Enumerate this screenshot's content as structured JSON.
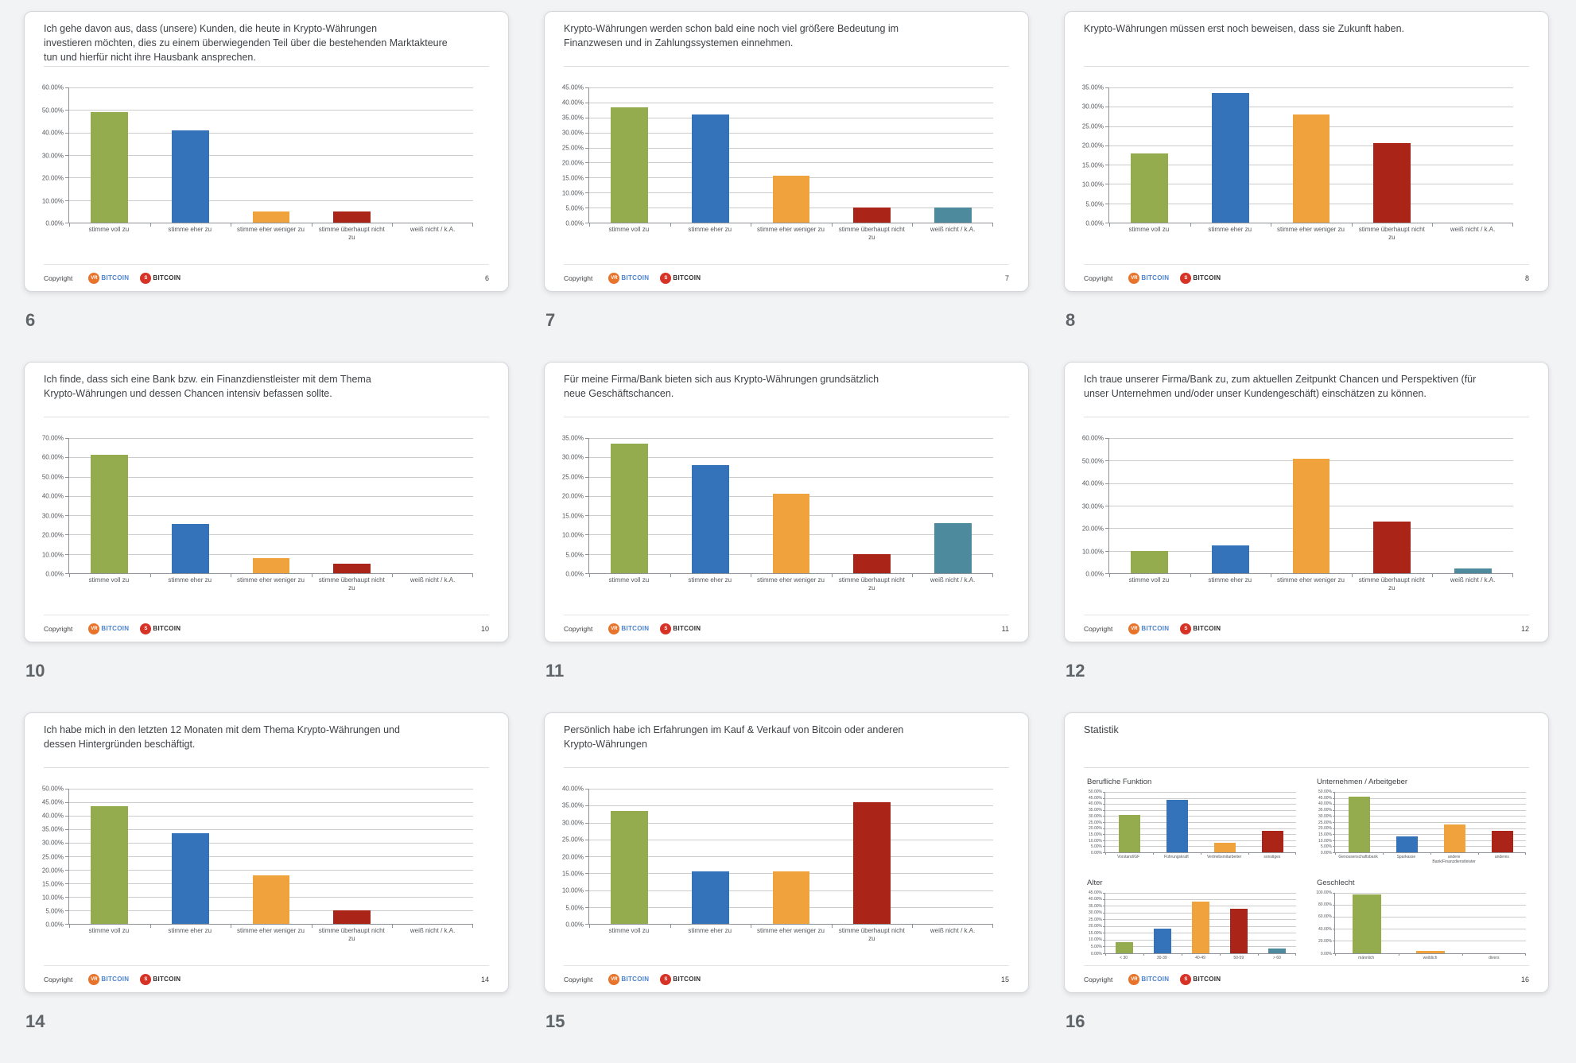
{
  "page": {
    "background_color": "#f2f3f5"
  },
  "branding": {
    "copyright_label": "Copyright",
    "logos": [
      {
        "badge": "VR",
        "badge_color": "#e8742c",
        "name": "BITCOIN",
        "name_color": "#4a82d0"
      },
      {
        "badge": "S",
        "badge_color": "#d63226",
        "name": "BITCOIN",
        "name_color": "#2c2c2c"
      }
    ]
  },
  "slides": [
    {
      "number": "6",
      "title": "Ich gehe davon aus, dass (unsere) Kunden, die heute in Krypto-Währungen\ninvestieren möchten, dies zu einem überwiegenden Teil über die bestehenden Marktakteure\ntun und hierfür nicht ihre Hausbank ansprechen.",
      "charts": [
        0
      ]
    },
    {
      "number": "7",
      "title": "Krypto-Währungen werden schon bald eine noch viel größere Bedeutung im\nFinanzwesen und in Zahlungssystemen einnehmen.",
      "charts": [
        1
      ]
    },
    {
      "number": "8",
      "title": "Krypto-Währungen müssen erst noch beweisen, dass sie Zukunft haben.",
      "charts": [
        2
      ]
    },
    {
      "number": "10",
      "title": "Ich finde, dass sich eine Bank bzw. ein Finanzdienstleister mit dem Thema\nKrypto-Währungen und dessen Chancen intensiv befassen sollte.",
      "charts": [
        3
      ]
    },
    {
      "number": "11",
      "title": "Für meine Firma/Bank bieten sich aus Krypto-Währungen grundsätzlich\nneue Geschäftschancen.",
      "charts": [
        4
      ]
    },
    {
      "number": "12",
      "title": "Ich traue unserer Firma/Bank zu, zum aktuellen Zeitpunkt Chancen und Perspektiven (für\nunser Unternehmen und/oder unser Kundengeschäft) einschätzen zu können.",
      "charts": [
        5
      ]
    },
    {
      "number": "14",
      "title": "Ich habe mich in den letzten 12 Monaten mit dem Thema Krypto-Währungen und\ndessen Hintergründen beschäftigt.",
      "charts": [
        6
      ]
    },
    {
      "number": "15",
      "title": "Persönlich habe ich Erfahrungen im Kauf & Verkauf von Bitcoin oder anderen\nKrypto-Währungen",
      "charts": [
        7
      ]
    },
    {
      "number": "16",
      "title": "Statistik",
      "charts": [
        8,
        9,
        10,
        11
      ]
    }
  ],
  "chart_data": [
    {
      "type": "bar",
      "slide": "6",
      "categories": [
        "stimme voll zu",
        "stimme eher zu",
        "stimme eher weniger zu",
        "stimme überhaupt nicht zu",
        "weiß nicht / k.A."
      ],
      "values": [
        49,
        41,
        5,
        5,
        0
      ],
      "ylim": [
        0,
        60
      ],
      "ytick_step": 10,
      "colors": [
        "#94ab4e",
        "#3473b9",
        "#f0a23d",
        "#aa2418",
        "#4e8a9e"
      ]
    },
    {
      "type": "bar",
      "slide": "7",
      "categories": [
        "stimme voll zu",
        "stimme eher zu",
        "stimme eher weniger zu",
        "stimme überhaupt nicht zu",
        "weiß nicht / k.A."
      ],
      "values": [
        38.5,
        36,
        15.5,
        5,
        5
      ],
      "ylim": [
        0,
        45
      ],
      "ytick_step": 5,
      "colors": [
        "#94ab4e",
        "#3473b9",
        "#f0a23d",
        "#aa2418",
        "#4e8a9e"
      ]
    },
    {
      "type": "bar",
      "slide": "8",
      "categories": [
        "stimme voll zu",
        "stimme eher zu",
        "stimme eher weniger zu",
        "stimme überhaupt nicht zu",
        "weiß nicht / k.A."
      ],
      "values": [
        18,
        33.5,
        28,
        20.5,
        0
      ],
      "ylim": [
        0,
        35
      ],
      "ytick_step": 5,
      "colors": [
        "#94ab4e",
        "#3473b9",
        "#f0a23d",
        "#aa2418",
        "#4e8a9e"
      ]
    },
    {
      "type": "bar",
      "slide": "10",
      "categories": [
        "stimme voll zu",
        "stimme eher zu",
        "stimme eher weniger zu",
        "stimme überhaupt nicht zu",
        "weiß nicht / k.A."
      ],
      "values": [
        61.5,
        25.5,
        8,
        5,
        0
      ],
      "ylim": [
        0,
        70
      ],
      "ytick_step": 10,
      "colors": [
        "#94ab4e",
        "#3473b9",
        "#f0a23d",
        "#aa2418",
        "#4e8a9e"
      ]
    },
    {
      "type": "bar",
      "slide": "11",
      "categories": [
        "stimme voll zu",
        "stimme eher zu",
        "stimme eher weniger zu",
        "stimme überhaupt nicht zu",
        "weiß nicht / k.A."
      ],
      "values": [
        33.5,
        28,
        20.5,
        5,
        13
      ],
      "ylim": [
        0,
        35
      ],
      "ytick_step": 5,
      "colors": [
        "#94ab4e",
        "#3473b9",
        "#f0a23d",
        "#aa2418",
        "#4e8a9e"
      ]
    },
    {
      "type": "bar",
      "slide": "12",
      "categories": [
        "stimme voll zu",
        "stimme eher zu",
        "stimme eher weniger zu",
        "stimme überhaupt nicht zu",
        "weiß nicht / k.A."
      ],
      "values": [
        10,
        12.5,
        51,
        23,
        2
      ],
      "ylim": [
        0,
        60
      ],
      "ytick_step": 10,
      "colors": [
        "#94ab4e",
        "#3473b9",
        "#f0a23d",
        "#aa2418",
        "#4e8a9e"
      ]
    },
    {
      "type": "bar",
      "slide": "14",
      "categories": [
        "stimme voll zu",
        "stimme eher zu",
        "stimme eher weniger zu",
        "stimme überhaupt nicht zu",
        "weiß nicht / k.A."
      ],
      "values": [
        43.5,
        33.5,
        18,
        5,
        0
      ],
      "ylim": [
        0,
        50
      ],
      "ytick_step": 5,
      "colors": [
        "#94ab4e",
        "#3473b9",
        "#f0a23d",
        "#aa2418",
        "#4e8a9e"
      ]
    },
    {
      "type": "bar",
      "slide": "15",
      "categories": [
        "stimme voll zu",
        "stimme eher zu",
        "stimme eher weniger zu",
        "stimme überhaupt nicht zu",
        "weiß nicht / k.A."
      ],
      "values": [
        33.5,
        15.5,
        15.5,
        36,
        0
      ],
      "ylim": [
        0,
        40
      ],
      "ytick_step": 5,
      "colors": [
        "#94ab4e",
        "#3473b9",
        "#f0a23d",
        "#aa2418",
        "#4e8a9e"
      ]
    },
    {
      "type": "bar",
      "slide": "16",
      "title": "Berufliche Funktion",
      "categories": [
        "Vorstand/GF",
        "Führungskraft",
        "Vertriebsmitarbeiter",
        "sonstiges"
      ],
      "values": [
        31,
        43.5,
        8,
        18
      ],
      "ylim": [
        0,
        50
      ],
      "ytick_step": 5,
      "colors": [
        "#94ab4e",
        "#3473b9",
        "#f0a23d",
        "#aa2418"
      ]
    },
    {
      "type": "bar",
      "slide": "16",
      "title": "Unternehmen / Arbeitgeber",
      "categories": [
        "Genossenschaftsbank",
        "Sparkasse",
        "andere Bank/Finanzdienstleister",
        "anderes"
      ],
      "values": [
        46,
        13,
        23,
        18
      ],
      "ylim": [
        0,
        50
      ],
      "ytick_step": 5,
      "colors": [
        "#94ab4e",
        "#3473b9",
        "#f0a23d",
        "#aa2418"
      ]
    },
    {
      "type": "bar",
      "slide": "16",
      "title": "Alter",
      "categories": [
        "< 30",
        "30-39",
        "40-49",
        "50-59",
        "> 60"
      ],
      "values": [
        8,
        18,
        38,
        33,
        3
      ],
      "ylim": [
        0,
        45
      ],
      "ytick_step": 5,
      "colors": [
        "#94ab4e",
        "#3473b9",
        "#f0a23d",
        "#aa2418",
        "#4e8a9e"
      ]
    },
    {
      "type": "bar",
      "slide": "16",
      "title": "Geschlecht",
      "categories": [
        "männlich",
        "weiblich",
        "divers"
      ],
      "values": [
        97,
        3,
        0
      ],
      "ylim": [
        0,
        100
      ],
      "ytick_step": 20,
      "colors": [
        "#94ab4e",
        "#f0a23d",
        "#4e8a9e"
      ]
    }
  ]
}
